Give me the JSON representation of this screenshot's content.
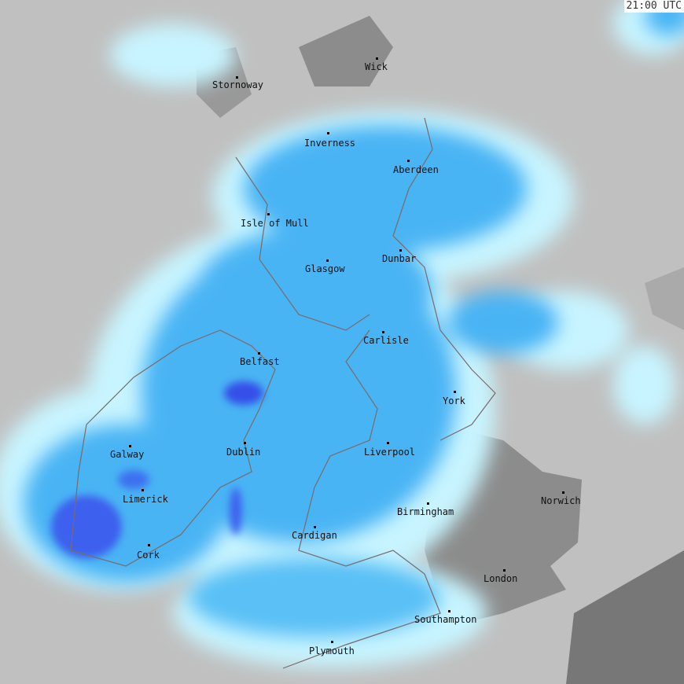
{
  "timestamp": "21:00 UTC",
  "colors": {
    "background": "#c0c0c0",
    "land": "#8c8c8c",
    "light_precip": "#c8f4ff",
    "moderate_precip": "#48b4f4",
    "heavy_precip": "#3c78f0",
    "intense_precip": "#2828e0"
  },
  "cities": [
    {
      "name": "Stornoway"
    },
    {
      "name": "Wick"
    },
    {
      "name": "Inverness"
    },
    {
      "name": "Aberdeen"
    },
    {
      "name": "Isle of Mull"
    },
    {
      "name": "Dunbar"
    },
    {
      "name": "Glasgow"
    },
    {
      "name": "Carlisle"
    },
    {
      "name": "Belfast"
    },
    {
      "name": "York"
    },
    {
      "name": "Galway"
    },
    {
      "name": "Dublin"
    },
    {
      "name": "Liverpool"
    },
    {
      "name": "Limerick"
    },
    {
      "name": "Norwich"
    },
    {
      "name": "Birmingham"
    },
    {
      "name": "Cardigan"
    },
    {
      "name": "Cork"
    },
    {
      "name": "London"
    },
    {
      "name": "Southampton"
    },
    {
      "name": "Plymouth"
    }
  ]
}
